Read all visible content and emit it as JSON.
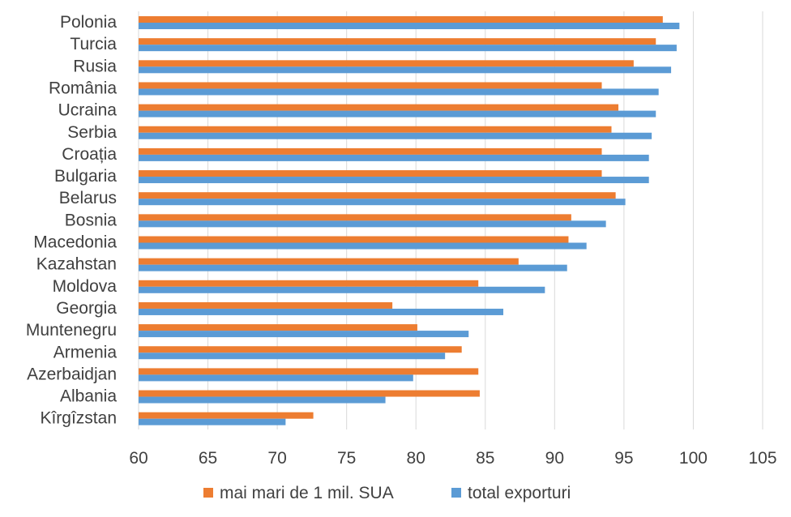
{
  "chart_data": {
    "type": "bar",
    "orientation": "horizontal",
    "categories": [
      "Polonia",
      "Turcia",
      "Rusia",
      "România",
      "Ucraina",
      "Serbia",
      "Croația",
      "Bulgaria",
      "Belarus",
      "Bosnia",
      "Macedonia",
      "Kazahstan",
      "Moldova",
      "Georgia",
      "Muntenegru",
      "Armenia",
      "Azerbaidjan",
      "Albania",
      "Kîrgîzstan"
    ],
    "series": [
      {
        "name": "mai mari de 1 mil. SUA",
        "color": "#ed7d31",
        "values": [
          97.8,
          97.3,
          95.7,
          93.4,
          94.6,
          94.1,
          93.4,
          93.4,
          94.4,
          91.2,
          91.0,
          87.4,
          84.5,
          78.3,
          80.1,
          83.3,
          84.5,
          84.6,
          72.6
        ]
      },
      {
        "name": "total exporturi",
        "color": "#5b9bd5",
        "values": [
          99.0,
          98.8,
          98.4,
          97.5,
          97.3,
          97.0,
          96.8,
          96.8,
          95.1,
          93.7,
          92.3,
          90.9,
          89.3,
          86.3,
          83.8,
          82.1,
          79.8,
          77.8,
          70.6
        ]
      }
    ],
    "xlim": [
      60,
      105
    ],
    "xticks": [
      "60",
      "65",
      "70",
      "75",
      "80",
      "85",
      "90",
      "95",
      "100",
      "105"
    ],
    "grid": true,
    "legend_position": "bottom"
  }
}
